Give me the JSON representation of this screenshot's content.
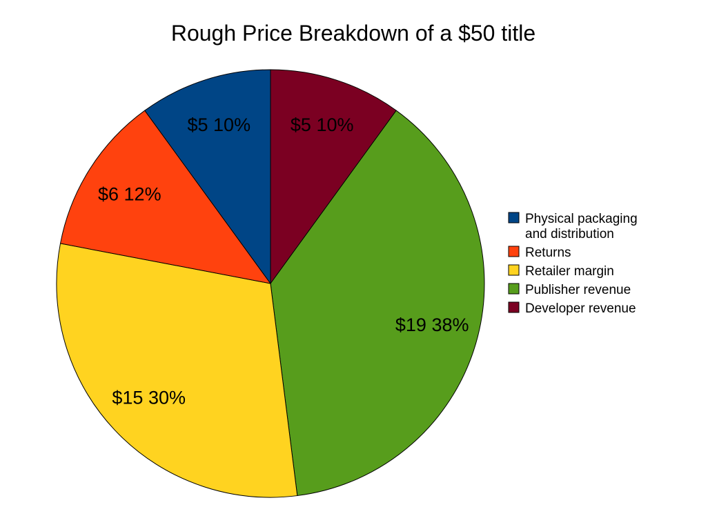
{
  "chart_data": {
    "type": "pie",
    "title": "Rough Price Breakdown of a $50 title",
    "slices": [
      {
        "name": "Developer revenue",
        "legend_lines": [
          "Developer revenue"
        ],
        "value": 5,
        "label": "$5 10%",
        "color": "#7b0022"
      },
      {
        "name": "Publisher revenue",
        "legend_lines": [
          "Publisher revenue"
        ],
        "value": 19,
        "label": "$19 38%",
        "color": "#579d1c"
      },
      {
        "name": "Retailer margin",
        "legend_lines": [
          "Retailer margin"
        ],
        "value": 15,
        "label": "$15 30%",
        "color": "#ffd320"
      },
      {
        "name": "Returns",
        "legend_lines": [
          "Returns"
        ],
        "value": 6,
        "label": "$6 12%",
        "color": "#ff420e"
      },
      {
        "name": "Physical packaging and distribution",
        "legend_lines": [
          "Physical packaging",
          "and distribution"
        ],
        "value": 5,
        "label": "$5 10%",
        "color": "#004586"
      }
    ],
    "legend_order": [
      "Physical packaging and distribution",
      "Returns",
      "Retailer margin",
      "Publisher revenue",
      "Developer revenue"
    ],
    "legend_position": "right",
    "start": "top",
    "direction": "clockwise"
  }
}
